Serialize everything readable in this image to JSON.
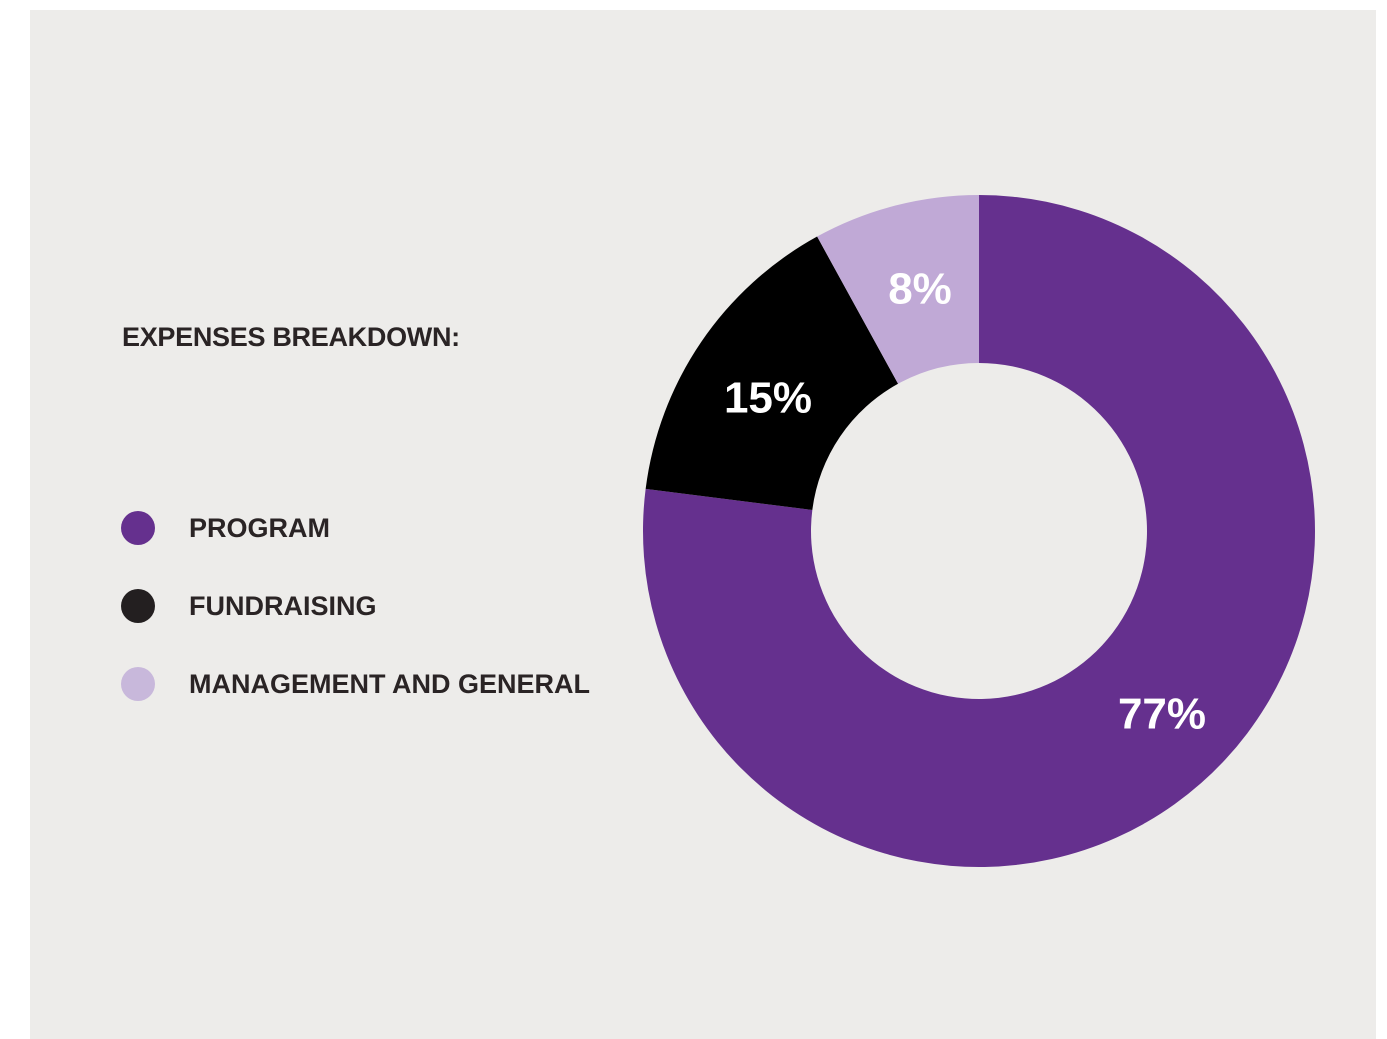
{
  "chart_data": {
    "type": "pie",
    "title": "EXPENSES BREAKDOWN:",
    "categories": [
      "PROGRAM",
      "FUNDRAISING",
      "MANAGEMENT AND GENERAL"
    ],
    "values": [
      77,
      15,
      8
    ],
    "value_labels": [
      "77%",
      "15%",
      "8%"
    ],
    "colors": [
      "#65308e",
      "#000000",
      "#c0a9d6"
    ],
    "legend_swatch_colors": [
      "#65308e",
      "#231f20",
      "#c8b8db"
    ],
    "legend_position": "left",
    "hole": "donut"
  },
  "colors": {
    "panel_background": "#edecea",
    "text": "#2a2425"
  }
}
